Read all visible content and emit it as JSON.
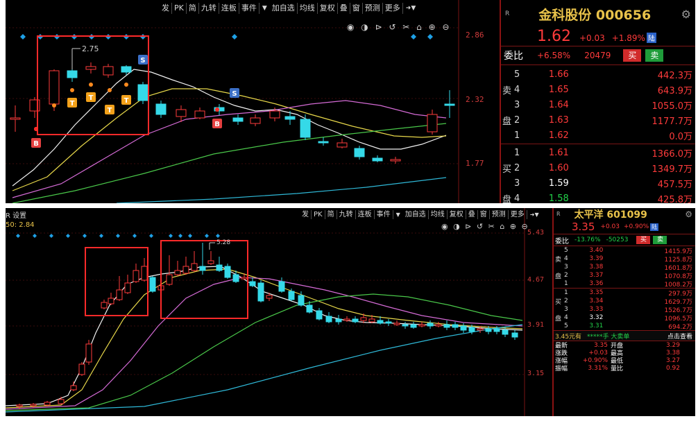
{
  "top": {
    "toolbar": [
      "发",
      "PK",
      "简",
      "九转",
      "连板",
      "事件",
      "加自选",
      "均线",
      "复权",
      "叠",
      "窗",
      "预测",
      "更多"
    ],
    "price_axis": [
      "2.86",
      "2.32",
      "1.77"
    ],
    "annotation_high": "2.75",
    "buy_marker": "B",
    "sell_marker": "S",
    "t_marker": "T",
    "quote": {
      "r": "R",
      "name": "金科股份 000656",
      "price": "1.62",
      "change": "+0.03",
      "change_pct": "+1.89%",
      "badge": "陆",
      "ratio_label": "委比",
      "ratio": "+6.58%",
      "diff": "20479",
      "buy_btn": "买",
      "sell_btn": "卖",
      "sell_side": [
        "卖",
        "盘"
      ],
      "buy_side": [
        "买",
        "盘"
      ],
      "sell_levels": [
        {
          "lvl": "5",
          "price": "1.66",
          "vol": "442.3万"
        },
        {
          "lvl": "4",
          "price": "1.65",
          "vol": "643.9万"
        },
        {
          "lvl": "3",
          "price": "1.64",
          "vol": "1055.0万"
        },
        {
          "lvl": "2",
          "price": "1.63",
          "vol": "1177.7万"
        },
        {
          "lvl": "1",
          "price": "1.62",
          "vol": "0.0万"
        }
      ],
      "buy_levels": [
        {
          "lvl": "1",
          "price": "1.61",
          "vol": "1366.0万"
        },
        {
          "lvl": "2",
          "price": "1.60",
          "vol": "1349.7万"
        },
        {
          "lvl": "3",
          "price": "1.59",
          "vol": "457.5万"
        },
        {
          "lvl": "4",
          "price": "1.58",
          "vol": "425.8万"
        }
      ]
    }
  },
  "bottom": {
    "corner_label": "R 设置",
    "ma_label": "50: 2.84",
    "toolbar": [
      "发",
      "PK",
      "简",
      "九转",
      "连板",
      "事件",
      "加自选",
      "均线",
      "复权",
      "叠",
      "窗",
      "预测",
      "更多"
    ],
    "price_axis": [
      "5.43",
      "4.67",
      "3.91",
      "3.15"
    ],
    "annotation_high": "5.28",
    "quote": {
      "r": "R",
      "name": "太平洋 601099",
      "price": "3.35",
      "change": "+0.03",
      "change_pct": "+0.90%",
      "badge": "陆",
      "ratio_label": "委比",
      "ratio": "-13.76%",
      "diff": "-50253",
      "buy_btn": "买",
      "sell_btn": "卖",
      "sell_side": [
        "卖",
        "盘"
      ],
      "buy_side": [
        "买",
        "盘"
      ],
      "sell_levels": [
        {
          "lvl": "5",
          "price": "3.40",
          "vol": "1415.9万"
        },
        {
          "lvl": "4",
          "price": "3.39",
          "vol": "1125.8万"
        },
        {
          "lvl": "3",
          "price": "3.38",
          "vol": "1601.8万"
        },
        {
          "lvl": "2",
          "price": "3.37",
          "vol": "1070.8万"
        },
        {
          "lvl": "1",
          "price": "3.36",
          "vol": "1008.2万"
        }
      ],
      "buy_levels": [
        {
          "lvl": "1",
          "price": "3.35",
          "vol": "297.9万"
        },
        {
          "lvl": "2",
          "price": "3.34",
          "vol": "1629.7万"
        },
        {
          "lvl": "3",
          "price": "3.33",
          "vol": "1526.7万"
        },
        {
          "lvl": "4",
          "price": "3.32",
          "vol": "1096.5万"
        },
        {
          "lvl": "5",
          "price": "3.31",
          "vol": "694.2万"
        }
      ],
      "summary": {
        "left": "3.45元有",
        "mid": "*****手 大卖单",
        "right": "点击查看"
      },
      "stats": [
        {
          "l1": "最新",
          "v1": "3.35",
          "l2": "开盘",
          "v2": "3.29"
        },
        {
          "l1": "涨跌",
          "v1": "+0.03",
          "l2": "最高",
          "v2": "3.38"
        },
        {
          "l1": "涨幅",
          "v1": "+0.90%",
          "l2": "最低",
          "v2": "3.27"
        },
        {
          "l1": "振幅",
          "v1": "3.31%",
          "l2": "量比",
          "v2": "0.92"
        }
      ]
    }
  }
}
